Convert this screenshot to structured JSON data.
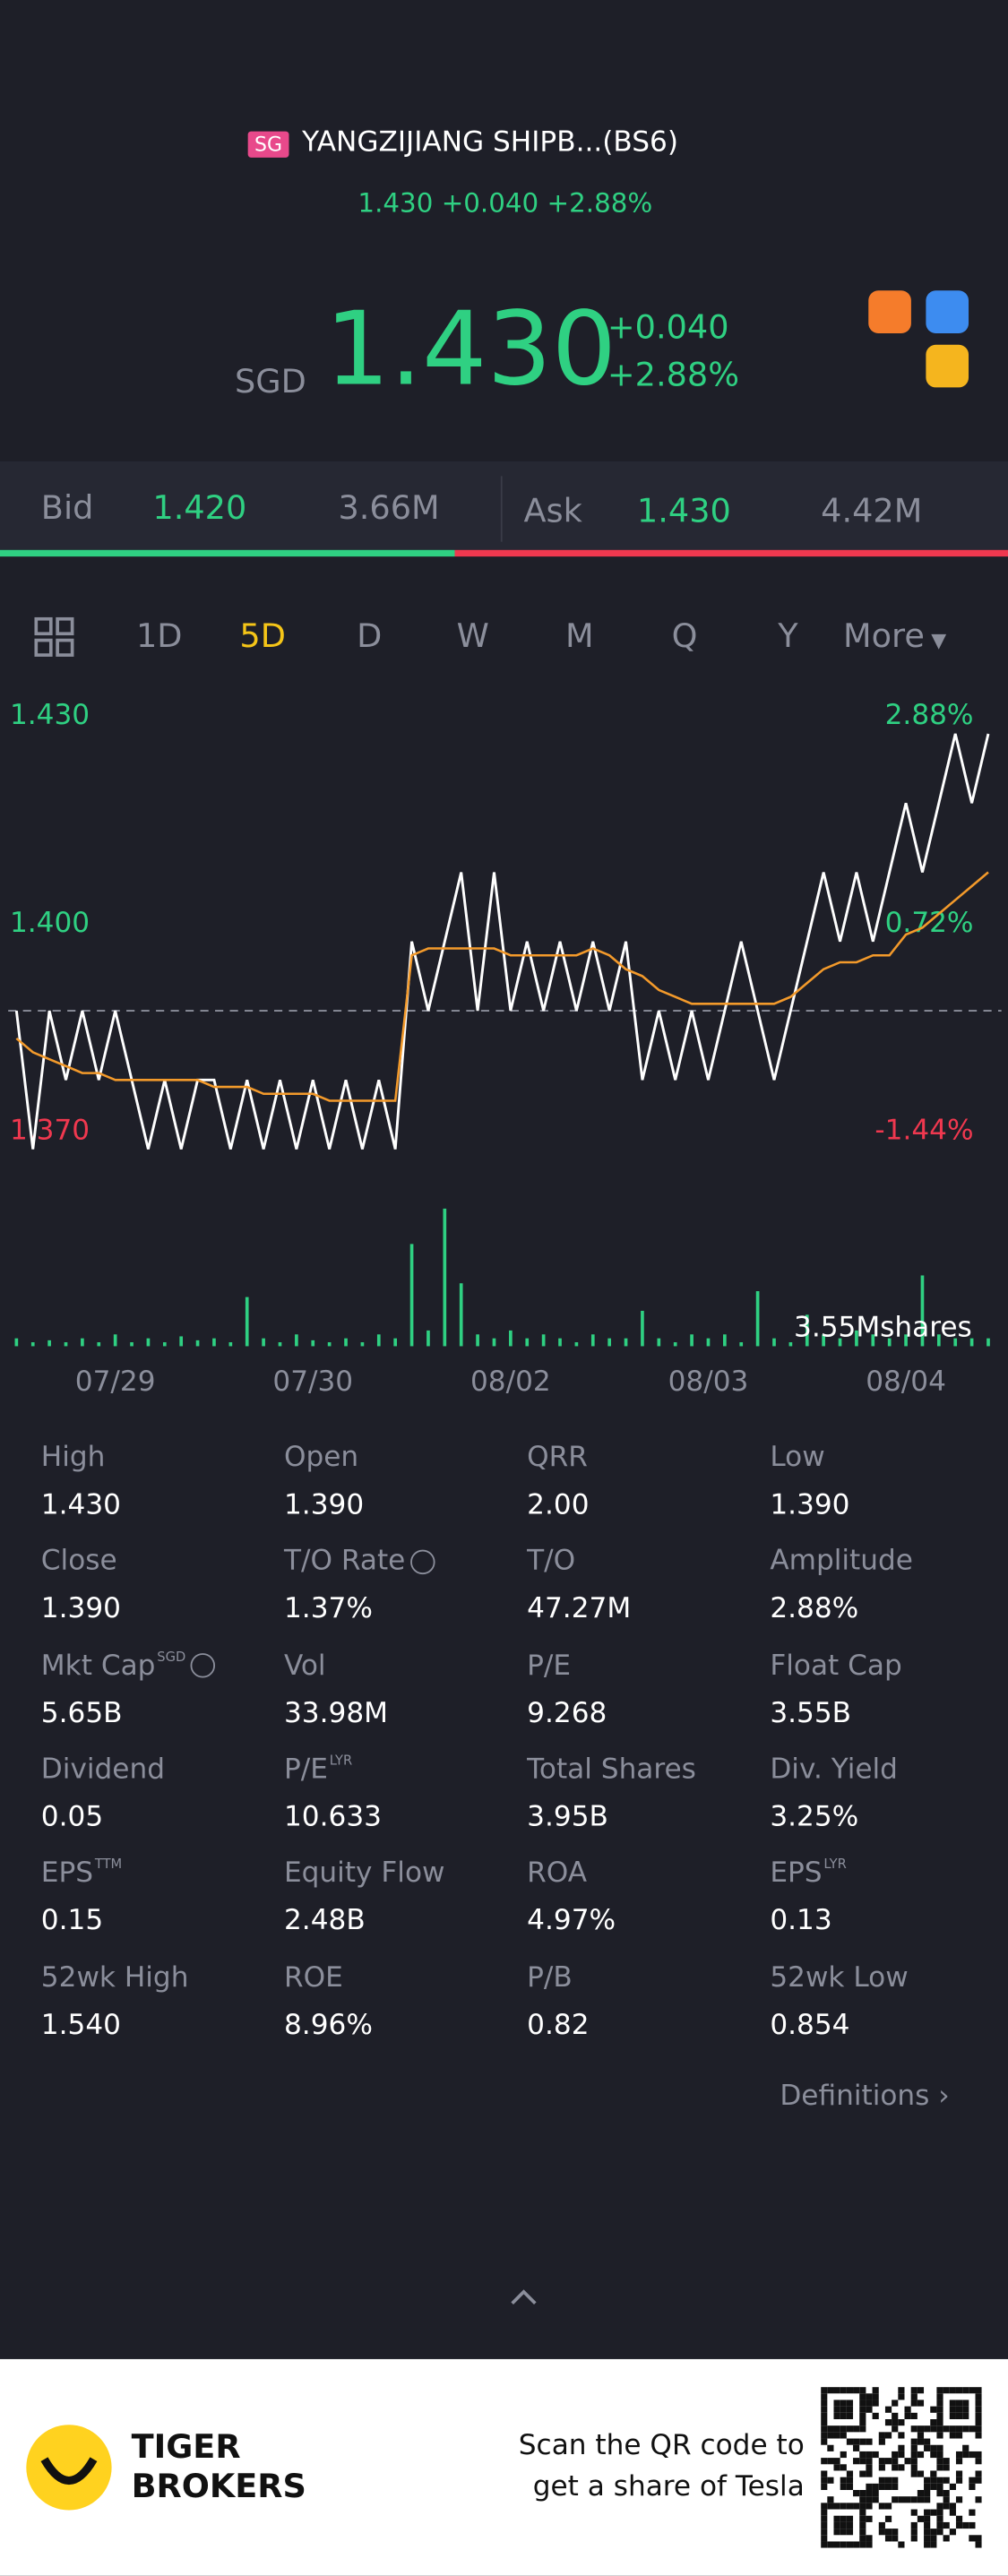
{
  "header": {
    "market_badge": "SG",
    "title": "YANGZIJIANG SHIPB...(BS6)",
    "price": "1.430",
    "change": "+0.040",
    "change_pct": "+2.88%"
  },
  "quote": {
    "currency": "SGD",
    "price": "1.430",
    "change": "+0.040",
    "change_pct": "+2.88%"
  },
  "order_book": {
    "bid_label": "Bid",
    "bid_price": "1.420",
    "bid_size": "3.66M",
    "ask_label": "Ask",
    "ask_price": "1.430",
    "ask_size": "4.42M"
  },
  "tabs": [
    "1D",
    "5D",
    "D",
    "W",
    "M",
    "Q",
    "Y",
    "More"
  ],
  "chart_data": {
    "type": "line",
    "categories": [
      null,
      null,
      null,
      null,
      null,
      null,
      "07/29",
      null,
      null,
      null,
      null,
      null,
      null,
      null,
      null,
      null,
      null,
      null,
      "07/30",
      null,
      null,
      null,
      null,
      null,
      null,
      null,
      null,
      null,
      null,
      null,
      "08/02",
      null,
      null,
      null,
      null,
      null,
      null,
      null,
      null,
      null,
      null,
      null,
      "08/03",
      null,
      null,
      null,
      null,
      null,
      null,
      null,
      null,
      null,
      null,
      null,
      "08/04",
      null,
      null,
      null,
      null,
      null
    ],
    "series": [
      {
        "name": "Price",
        "color": "#ffffff",
        "values": [
          1.39,
          1.37,
          1.39,
          1.38,
          1.39,
          1.38,
          1.39,
          1.38,
          1.37,
          1.38,
          1.37,
          1.38,
          1.38,
          1.37,
          1.38,
          1.37,
          1.38,
          1.37,
          1.38,
          1.37,
          1.38,
          1.37,
          1.38,
          1.37,
          1.4,
          1.39,
          1.4,
          1.41,
          1.39,
          1.41,
          1.39,
          1.4,
          1.39,
          1.4,
          1.39,
          1.4,
          1.39,
          1.4,
          1.38,
          1.39,
          1.38,
          1.39,
          1.38,
          1.39,
          1.4,
          1.39,
          1.38,
          1.39,
          1.4,
          1.41,
          1.4,
          1.41,
          1.4,
          1.41,
          1.42,
          1.41,
          1.42,
          1.43,
          1.42,
          1.43
        ]
      },
      {
        "name": "Average",
        "color": "#f39a2b",
        "values": [
          1.386,
          1.384,
          1.383,
          1.382,
          1.381,
          1.381,
          1.38,
          1.38,
          1.38,
          1.38,
          1.38,
          1.38,
          1.379,
          1.379,
          1.379,
          1.378,
          1.378,
          1.378,
          1.378,
          1.377,
          1.377,
          1.377,
          1.377,
          1.377,
          1.398,
          1.399,
          1.399,
          1.399,
          1.399,
          1.399,
          1.398,
          1.398,
          1.398,
          1.398,
          1.398,
          1.399,
          1.398,
          1.396,
          1.395,
          1.393,
          1.392,
          1.391,
          1.391,
          1.391,
          1.391,
          1.391,
          1.391,
          1.392,
          1.394,
          1.396,
          1.397,
          1.397,
          1.398,
          1.398,
          1.401,
          1.402,
          1.404,
          1.406,
          1.408,
          1.41
        ]
      }
    ],
    "ylim": [
      1.37,
      1.43
    ],
    "yticks": [
      {
        "value": 1.43,
        "label": "1.430"
      },
      {
        "value": 1.4,
        "label": "1.400"
      },
      {
        "value": 1.37,
        "label": "1.370"
      }
    ],
    "y2lim": [
      -1.44,
      2.88
    ],
    "y2ticks": [
      {
        "value": 2.88,
        "label": "2.88%"
      },
      {
        "value": 0.72,
        "label": "0.72%"
      },
      {
        "value": -1.44,
        "label": "-1.44%"
      }
    ],
    "prev_close": 1.39,
    "up_color": "#2fd082",
    "down_color": "#f0384f",
    "volume": {
      "color": "#2fd082",
      "values": [
        0.2,
        0.1,
        0.15,
        0.1,
        0.2,
        0.1,
        0.3,
        0.1,
        0.2,
        0.1,
        0.25,
        0.15,
        0.2,
        0.1,
        1.25,
        0.2,
        0.1,
        0.3,
        0.15,
        0.1,
        0.2,
        0.1,
        0.3,
        0.2,
        2.6,
        0.4,
        3.5,
        1.6,
        0.3,
        0.2,
        0.4,
        0.2,
        0.3,
        0.2,
        0.1,
        0.3,
        0.2,
        0.2,
        0.9,
        0.2,
        0.1,
        0.3,
        0.2,
        0.3,
        0.1,
        1.4,
        0.2,
        0.1,
        0.8,
        0.3,
        0.2,
        0.4,
        0.3,
        0.2,
        0.3,
        1.8,
        0.3,
        0.2,
        0.2,
        0.2
      ]
    },
    "volume_ylim": [
      0,
      3.55
    ],
    "volume_yticks": [
      {
        "value": 3.55,
        "label": "3.55Mshares"
      }
    ]
  },
  "stats": [
    {
      "label": "High",
      "value": "1.430"
    },
    {
      "label": "Open",
      "value": "1.390"
    },
    {
      "label": "QRR",
      "value": "2.00"
    },
    {
      "label": "Low",
      "value": "1.390"
    },
    {
      "label": "Close",
      "value": "1.390"
    },
    {
      "label": "T/O Rate",
      "value": "1.37%"
    },
    {
      "label": "T/O",
      "value": "47.27M"
    },
    {
      "label": "Amplitude",
      "value": "2.88%"
    },
    {
      "label": "Mkt Cap",
      "sup": "SGD",
      "value": "5.65B"
    },
    {
      "label": "Vol",
      "value": "33.98M"
    },
    {
      "label": "P/E",
      "value": "9.268"
    },
    {
      "label": "Float Cap",
      "value": "3.55B"
    },
    {
      "label": "Dividend",
      "value": "0.05"
    },
    {
      "label": "P/E",
      "sup": "LYR",
      "value": "10.633"
    },
    {
      "label": "Total Shares",
      "value": "3.95B"
    },
    {
      "label": "Div. Yield",
      "value": "3.25%"
    },
    {
      "label": "EPS",
      "sup": "TTM",
      "value": "0.15"
    },
    {
      "label": "Equity Flow",
      "value": "2.48B"
    },
    {
      "label": "ROA",
      "value": "4.97%"
    },
    {
      "label": "EPS",
      "sup": "LYR",
      "value": "0.13"
    },
    {
      "label": "52wk High",
      "value": "1.540"
    },
    {
      "label": "ROE",
      "value": "8.96%"
    },
    {
      "label": "P/B",
      "value": "0.82"
    },
    {
      "label": "52wk Low",
      "value": "0.854"
    }
  ],
  "definitions": "Definitions",
  "footer": {
    "brand_line1": "TIGER",
    "brand_line2": "BROKERS",
    "cta_line1": "Scan the QR code to",
    "cta_line2": "get a share of Tesla"
  }
}
